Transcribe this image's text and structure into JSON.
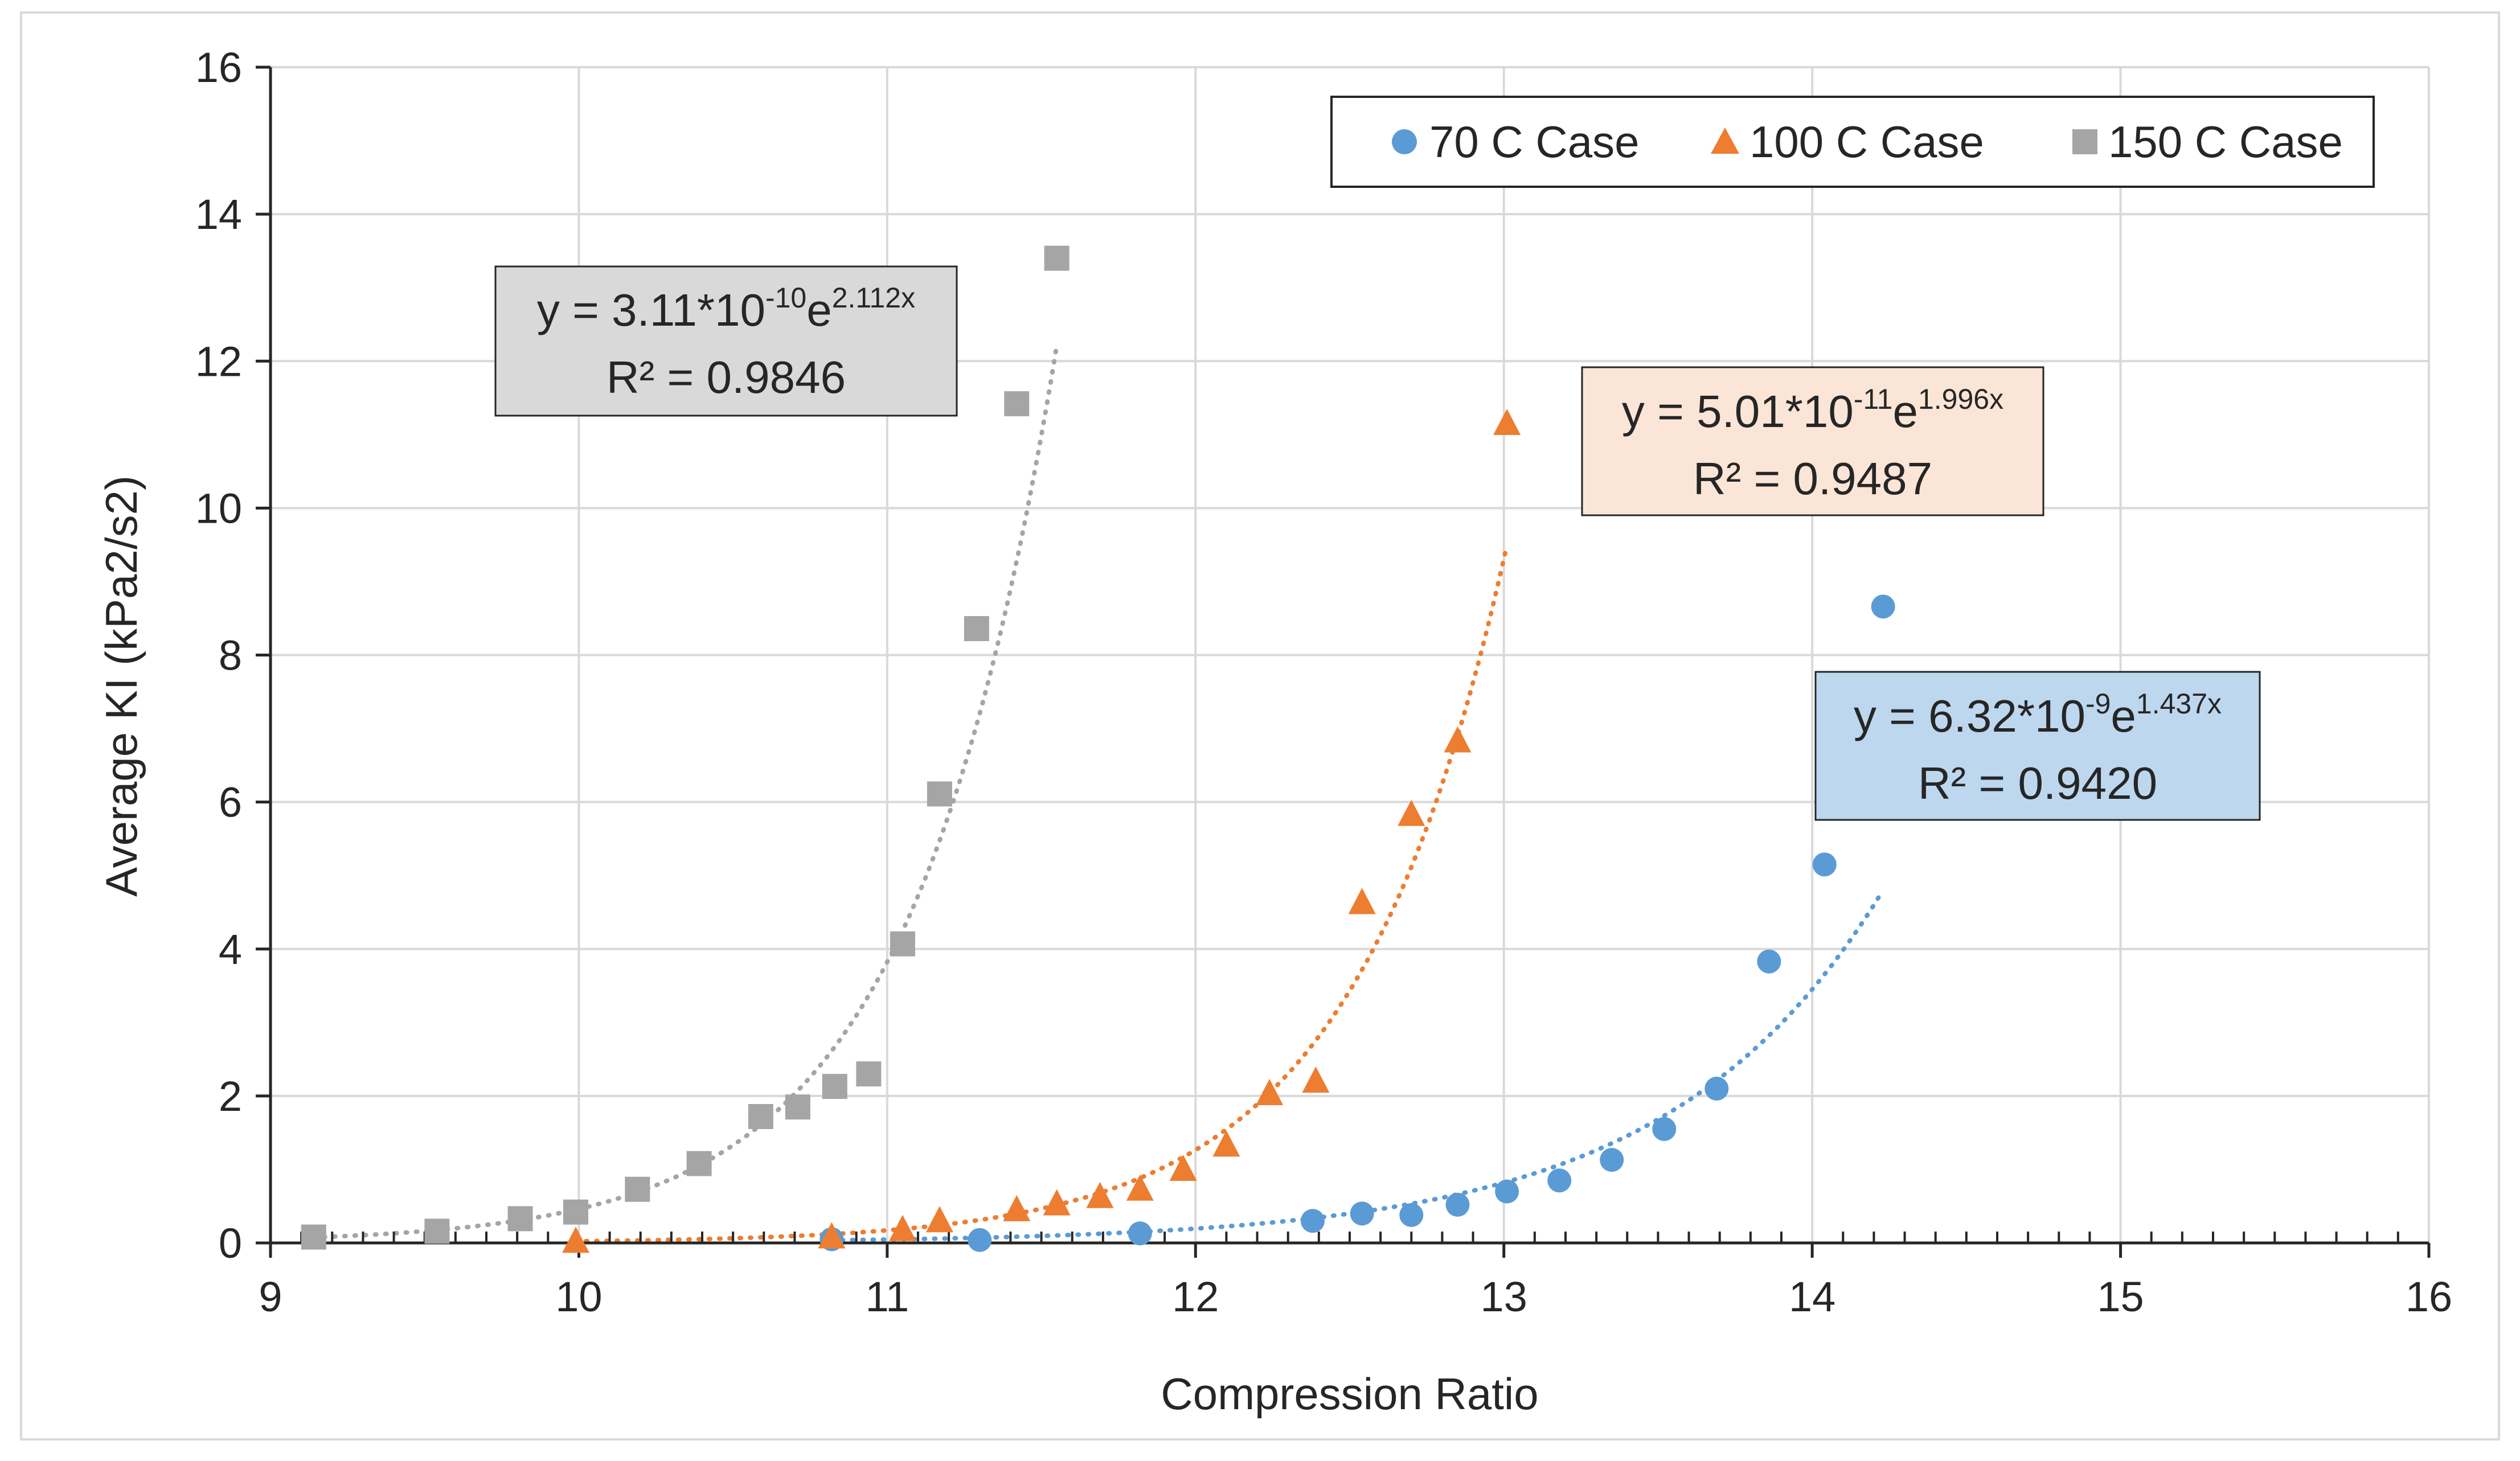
{
  "chart_data": {
    "type": "scatter",
    "title": "",
    "xlabel": "Compression Ratio",
    "ylabel": "Average KI (kPa2/s2)",
    "xlim": [
      9,
      16
    ],
    "ylim": [
      0,
      16
    ],
    "x_ticks": [
      "9",
      "10",
      "11",
      "12",
      "13",
      "14",
      "15",
      "16"
    ],
    "y_ticks": [
      "0",
      "2",
      "4",
      "6",
      "8",
      "10",
      "12",
      "14",
      "16"
    ],
    "grid": true,
    "legend_position": "top-right",
    "series": [
      {
        "name": "70 C Case",
        "marker": "circle",
        "color": "#5b9bd5",
        "points": [
          [
            10.82,
            0.05
          ],
          [
            11.3,
            0.04
          ],
          [
            11.82,
            0.13
          ],
          [
            12.38,
            0.3
          ],
          [
            12.54,
            0.4
          ],
          [
            12.7,
            0.38
          ],
          [
            12.85,
            0.52
          ],
          [
            13.01,
            0.7
          ],
          [
            13.18,
            0.85
          ],
          [
            13.35,
            1.13
          ],
          [
            13.52,
            1.55
          ],
          [
            13.69,
            2.1
          ],
          [
            13.86,
            3.83
          ],
          [
            14.04,
            5.15
          ],
          [
            14.23,
            8.66
          ]
        ],
        "trendline": {
          "a": 6.32e-09,
          "b": 1.437,
          "x_range": [
            10.82,
            14.23
          ]
        },
        "equation": {
          "prefix": "y = 6.32*10",
          "exp_coef": "-9",
          "mid": "e",
          "exp_x": "1.437x",
          "r2": "R² = 0.9420"
        },
        "equation_box_color": "#bdd7ee"
      },
      {
        "name": "100 C Case",
        "marker": "triangle",
        "color": "#ed7d31",
        "points": [
          [
            9.99,
            0.02
          ],
          [
            10.82,
            0.08
          ],
          [
            11.05,
            0.18
          ],
          [
            11.17,
            0.3
          ],
          [
            11.42,
            0.45
          ],
          [
            11.55,
            0.53
          ],
          [
            11.69,
            0.63
          ],
          [
            11.82,
            0.73
          ],
          [
            11.96,
            1.0
          ],
          [
            12.1,
            1.33
          ],
          [
            12.24,
            2.03
          ],
          [
            12.39,
            2.2
          ],
          [
            12.54,
            4.63
          ],
          [
            12.7,
            5.83
          ],
          [
            12.85,
            6.83
          ],
          [
            13.01,
            11.15
          ]
        ],
        "trendline": {
          "a": 5.01e-11,
          "b": 1.996,
          "x_range": [
            9.99,
            13.01
          ]
        },
        "equation": {
          "prefix": "y = 5.01*10",
          "exp_coef": "-11",
          "mid": "e",
          "exp_x": "1.996x",
          "r2": "R² = 0.9487"
        },
        "equation_box_color": "#fbe5d6"
      },
      {
        "name": "150 C Case",
        "marker": "square",
        "color": "#a5a5a5",
        "points": [
          [
            9.14,
            0.08
          ],
          [
            9.54,
            0.16
          ],
          [
            9.81,
            0.33
          ],
          [
            9.99,
            0.42
          ],
          [
            10.19,
            0.73
          ],
          [
            10.39,
            1.08
          ],
          [
            10.59,
            1.72
          ],
          [
            10.71,
            1.85
          ],
          [
            10.83,
            2.13
          ],
          [
            10.94,
            2.3
          ],
          [
            11.05,
            4.07
          ],
          [
            11.17,
            6.11
          ],
          [
            11.29,
            8.36
          ],
          [
            11.42,
            11.42
          ],
          [
            11.55,
            13.4
          ]
        ],
        "trendline": {
          "a": 3.11e-10,
          "b": 2.112,
          "x_range": [
            9.14,
            11.55
          ]
        },
        "equation": {
          "prefix": "y = 3.11*10",
          "exp_coef": "-10",
          "mid": "e",
          "exp_x": "2.112x",
          "r2": "R² = 0.9846"
        },
        "equation_box_color": "#d9d9d9"
      }
    ]
  }
}
